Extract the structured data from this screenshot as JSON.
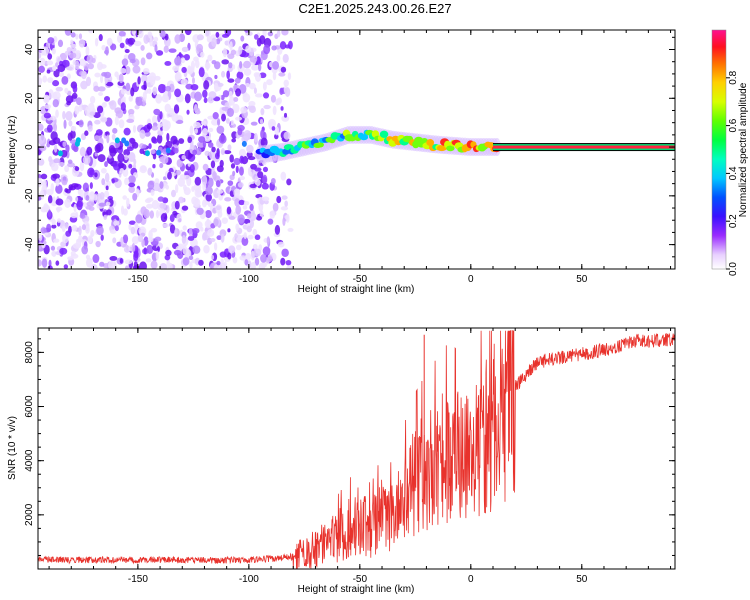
{
  "figure": {
    "title": "C2E1.2025.243.00.26.E27"
  },
  "chart_data": [
    {
      "type": "heatmap",
      "xlabel": "Height of straight line (km)",
      "ylabel": "Frequency (Hz)",
      "xlim": [
        -195,
        92
      ],
      "ylim": [
        -50,
        48
      ],
      "xticks": [
        -150,
        -100,
        -50,
        0,
        50
      ],
      "yticks": [
        -40,
        -20,
        0,
        20,
        40
      ],
      "colorbar": {
        "label": "Normalized spectral amplitude",
        "range": [
          0,
          1
        ],
        "ticks": [
          0.0,
          0.2,
          0.4,
          0.6,
          0.8
        ]
      },
      "signal_ridge": [
        {
          "x": -95,
          "y": -3
        },
        {
          "x": -85,
          "y": -2
        },
        {
          "x": -75,
          "y": 0
        },
        {
          "x": -65,
          "y": 2
        },
        {
          "x": -55,
          "y": 5
        },
        {
          "x": -45,
          "y": 5
        },
        {
          "x": -35,
          "y": 3
        },
        {
          "x": -25,
          "y": 2
        },
        {
          "x": -15,
          "y": 1
        },
        {
          "x": 0,
          "y": 0
        },
        {
          "x": 10,
          "y": 0
        },
        {
          "x": 30,
          "y": 0
        },
        {
          "x": 60,
          "y": 0
        },
        {
          "x": 90,
          "y": 0
        }
      ],
      "noise_region": {
        "x_from": -195,
        "x_to": -80
      }
    },
    {
      "type": "line",
      "xlabel": "Height of straight line (km)",
      "ylabel": "SNR (10 * v/v)",
      "xlim": [
        -195,
        92
      ],
      "ylim": [
        0,
        8900
      ],
      "xticks": [
        -150,
        -100,
        -50,
        0,
        50
      ],
      "yticks": [
        2000,
        4000,
        6000,
        8000
      ],
      "color": "#e8322c",
      "series": [
        {
          "x": [
            -195,
            -180,
            -160,
            -140,
            -120,
            -100,
            -90,
            -80,
            -75,
            -70,
            -65,
            -60,
            -55,
            -50,
            -45,
            -40,
            -35,
            -30,
            -25,
            -20,
            -15,
            -10,
            -5,
            0,
            5,
            10,
            15,
            20,
            25,
            30,
            35,
            40,
            45,
            50,
            55,
            60,
            65,
            70,
            75,
            80,
            85,
            92
          ],
          "y": [
            350,
            330,
            340,
            330,
            320,
            330,
            380,
            450,
            550,
            750,
            950,
            1200,
            1500,
            1800,
            1400,
            2000,
            1800,
            2600,
            3200,
            3600,
            3900,
            4200,
            4000,
            4200,
            4600,
            5300,
            6000,
            6700,
            7200,
            7600,
            7750,
            7800,
            7850,
            7950,
            8000,
            8100,
            8200,
            8350,
            8450,
            8400,
            8450,
            8450
          ]
        }
      ]
    }
  ]
}
